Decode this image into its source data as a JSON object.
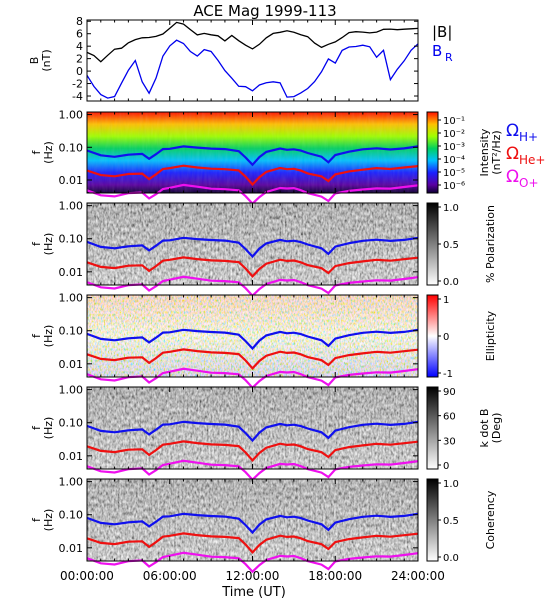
{
  "chart_data": {
    "title": "ACE Mag 1999-113",
    "xlabel": "Time (UT)",
    "x_ticks": [
      "00:00:00",
      "06:00:00",
      "12:00:00",
      "18:00:00",
      "24:00:00"
    ],
    "x_range_hours": [
      0,
      24
    ],
    "freq_ticks": [
      "1.00",
      "0.10",
      "0.01"
    ],
    "freq_range_hz": [
      0.004,
      1.2
    ],
    "freq_scale": "log",
    "panels": [
      {
        "type": "line",
        "ylabel": "B\n(nT)",
        "y_ticks": [
          "8",
          "6",
          "4",
          "2",
          "0",
          "-2",
          "-4"
        ],
        "ylim": [
          -4.8,
          8.2
        ],
        "series": [
          {
            "name": "|B|",
            "color": "#000000",
            "x": [
              0,
              0.5,
              1,
              1.5,
              2,
              2.5,
              3,
              3.5,
              4,
              4.5,
              5,
              5.5,
              6,
              6.5,
              7,
              7.5,
              8,
              8.5,
              9,
              9.5,
              10,
              10.5,
              11,
              11.5,
              12,
              12.5,
              13,
              13.5,
              14,
              14.5,
              15,
              15.5,
              16,
              16.5,
              17,
              17.5,
              18,
              18.5,
              19,
              19.5,
              20,
              20.5,
              21,
              21.5,
              22,
              22.5,
              23,
              23.5,
              24
            ],
            "values": [
              3.0,
              2.2,
              1.2,
              2.5,
              3.8,
              4.0,
              4.6,
              4.8,
              5.0,
              5.3,
              5.8,
              6.3,
              7.0,
              7.6,
              7.2,
              6.5,
              6.0,
              6.4,
              6.0,
              5.5,
              4.5,
              5.5,
              5.0,
              4.5,
              3.8,
              4.2,
              5.0,
              5.8,
              6.3,
              6.8,
              6.5,
              5.8,
              5.2,
              4.2,
              3.8,
              4.6,
              5.0,
              5.4,
              5.9,
              6.0,
              6.2,
              6.4,
              6.6,
              6.8,
              6.5,
              6.3,
              6.6,
              7.0,
              7.2
            ]
          },
          {
            "name": "B_R",
            "color": "#0000ee",
            "x": [
              0,
              0.5,
              1,
              1.5,
              2,
              2.5,
              3,
              3.5,
              4,
              4.5,
              5,
              5.5,
              6,
              6.5,
              7,
              7.5,
              8,
              8.5,
              9,
              9.5,
              10,
              10.5,
              11,
              11.5,
              12,
              12.5,
              13,
              13.5,
              14,
              14.5,
              15,
              15.5,
              16,
              16.5,
              17,
              17.5,
              18,
              18.5,
              19,
              19.5,
              20,
              20.5,
              21,
              21.5,
              22,
              22.5,
              23,
              23.5,
              24
            ],
            "values": [
              -1.0,
              -2.5,
              -3.5,
              -4.0,
              -4.0,
              -2.2,
              -0.2,
              1.6,
              -1.5,
              -3.2,
              -1.0,
              2.2,
              3.7,
              4.8,
              4.6,
              3.5,
              2.6,
              3.3,
              2.8,
              1.5,
              0.2,
              -0.8,
              -2.2,
              -2.6,
              -3.5,
              -2.5,
              -1.8,
              -1.4,
              -1.6,
              -4.2,
              -4.4,
              -3.8,
              -2.8,
              -1.4,
              0.2,
              2.0,
              1.0,
              3.0,
              3.8,
              4.2,
              4.5,
              4.0,
              2.0,
              3.0,
              -1.5,
              0.5,
              2.0,
              3.5,
              4.2
            ]
          }
        ]
      },
      {
        "type": "heatmap",
        "ylabel": "f\n(Hz)",
        "palette": "rainbow",
        "colorbar_label": "Intensity\n(nT²/Hz)",
        "colorbar_ticks": [
          "10⁻¹",
          "10⁻²",
          "10⁻³",
          "10⁻⁴",
          "10⁻⁵",
          "10⁻⁶"
        ]
      },
      {
        "type": "heatmap",
        "ylabel": "f\n(Hz)",
        "palette": "gray",
        "colorbar_label": "% Polarization",
        "colorbar_ticks": [
          "1.0",
          "0.5",
          "0.0"
        ]
      },
      {
        "type": "heatmap",
        "ylabel": "f\n(Hz)",
        "palette": "bluered",
        "colorbar_label": "Ellipticity",
        "colorbar_ticks": [
          "1",
          "0",
          "-1"
        ]
      },
      {
        "type": "heatmap",
        "ylabel": "f\n(Hz)",
        "palette": "gray",
        "colorbar_label": "k dot B\n(Deg)",
        "colorbar_ticks": [
          "90",
          "60",
          "30",
          "0"
        ]
      },
      {
        "type": "heatmap",
        "ylabel": "f\n(Hz)",
        "palette": "gray",
        "colorbar_label": "Coherency",
        "colorbar_ticks": [
          "1.0",
          "0.5",
          "0.0"
        ]
      }
    ],
    "overlay_lines": [
      {
        "name": "Ω_H+",
        "symbol": "Ω",
        "subscript": "H+",
        "color": "#1010ee",
        "x": [
          0,
          1,
          2,
          3,
          4,
          4.5,
          5,
          5.5,
          6,
          7,
          8,
          9,
          10,
          11,
          11.5,
          12,
          12.5,
          13,
          14,
          14.5,
          15,
          15.5,
          16,
          17,
          17.5,
          18,
          19,
          20,
          21,
          22,
          23,
          24
        ],
        "values_hz": [
          0.08,
          0.055,
          0.05,
          0.06,
          0.065,
          0.045,
          0.06,
          0.085,
          0.09,
          0.11,
          0.1,
          0.09,
          0.085,
          0.075,
          0.05,
          0.03,
          0.05,
          0.07,
          0.09,
          0.085,
          0.09,
          0.08,
          0.065,
          0.05,
          0.035,
          0.06,
          0.075,
          0.085,
          0.09,
          0.085,
          0.095,
          0.11
        ]
      },
      {
        "name": "Ω_He+",
        "symbol": "Ω",
        "subscript": "He+",
        "color": "#ee1010",
        "x": [
          0,
          1,
          2,
          3,
          4,
          4.5,
          5,
          5.5,
          6,
          7,
          8,
          9,
          10,
          11,
          11.5,
          12,
          12.5,
          13,
          14,
          14.5,
          15,
          15.5,
          16,
          17,
          17.5,
          18,
          19,
          20,
          21,
          22,
          23,
          24
        ],
        "values_hz": [
          0.02,
          0.014,
          0.0125,
          0.015,
          0.016,
          0.011,
          0.015,
          0.021,
          0.0225,
          0.0275,
          0.025,
          0.0225,
          0.021,
          0.019,
          0.0125,
          0.0075,
          0.0125,
          0.0175,
          0.0225,
          0.021,
          0.0225,
          0.02,
          0.016,
          0.0125,
          0.009,
          0.015,
          0.019,
          0.021,
          0.0225,
          0.021,
          0.024,
          0.0275
        ]
      },
      {
        "name": "Ω_O+",
        "symbol": "Ω",
        "subscript": "O+",
        "color": "#ee10ee",
        "x": [
          0,
          1,
          2,
          3,
          4,
          4.5,
          5,
          5.5,
          6,
          7,
          8,
          9,
          10,
          11,
          11.5,
          12,
          12.5,
          13,
          14,
          14.5,
          15,
          15.5,
          16,
          17,
          17.5,
          18,
          19,
          20,
          21,
          22,
          23,
          24
        ],
        "values_hz": [
          0.005,
          0.0035,
          0.0031,
          0.0038,
          0.0041,
          0.0028,
          0.0038,
          0.0053,
          0.0056,
          0.0069,
          0.0063,
          0.0056,
          0.0053,
          0.0047,
          0.0031,
          0.0019,
          0.0031,
          0.0044,
          0.0056,
          0.0053,
          0.0056,
          0.005,
          0.0041,
          0.0031,
          0.0022,
          0.0038,
          0.0047,
          0.0053,
          0.0056,
          0.0053,
          0.0059,
          0.0069
        ]
      }
    ],
    "b_legend": [
      {
        "text": "|B|",
        "color": "#000000"
      },
      {
        "text": "B",
        "sub": "R",
        "color": "#0000ee"
      }
    ]
  }
}
